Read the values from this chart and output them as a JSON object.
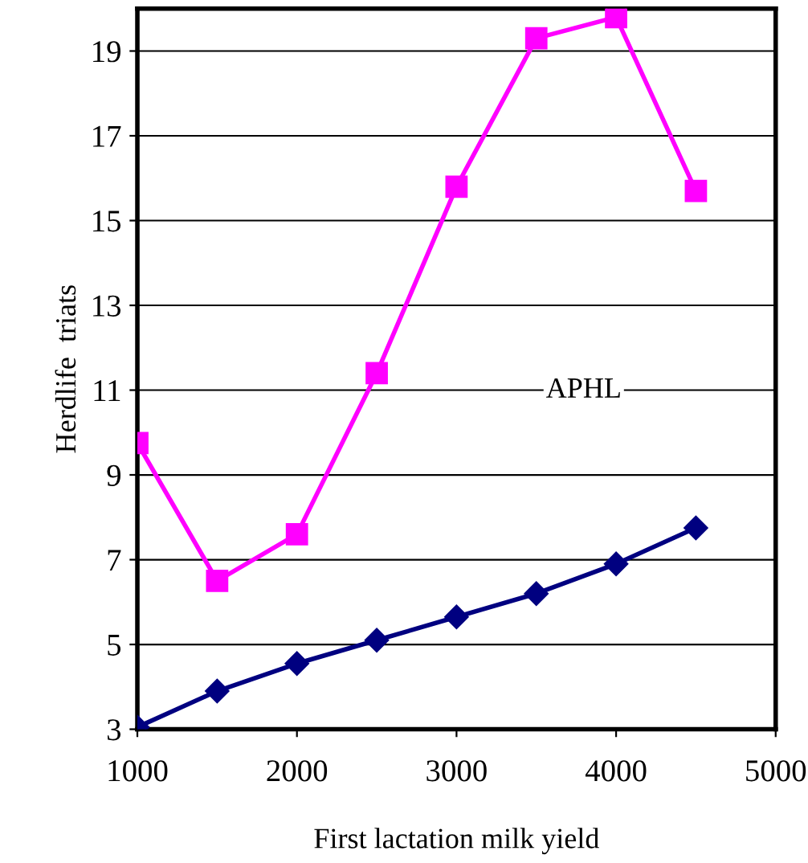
{
  "chart_data": {
    "type": "line",
    "xlabel": "First lactation milk yield",
    "ylabel": "Herdlife  triats",
    "x": [
      1000,
      1500,
      2000,
      2500,
      3000,
      3500,
      4000,
      4500
    ],
    "series": [
      {
        "color": "#ff00ff",
        "marker": "square",
        "values": [
          9.75,
          6.5,
          7.6,
          11.4,
          15.8,
          19.3,
          19.8,
          15.7
        ]
      },
      {
        "color": "#000080",
        "marker": "diamond",
        "values": [
          3.05,
          3.9,
          4.55,
          5.1,
          5.65,
          6.2,
          6.9,
          7.75
        ]
      }
    ],
    "annotations": [
      "APHL"
    ],
    "xlim": [
      1000,
      5000
    ],
    "xticks": [
      1000,
      2000,
      3000,
      4000,
      5000
    ],
    "ylim": [
      3,
      20
    ],
    "yticks": [
      3,
      5,
      7,
      9,
      11,
      13,
      15,
      17,
      19
    ],
    "grid": "y",
    "legend": false
  }
}
